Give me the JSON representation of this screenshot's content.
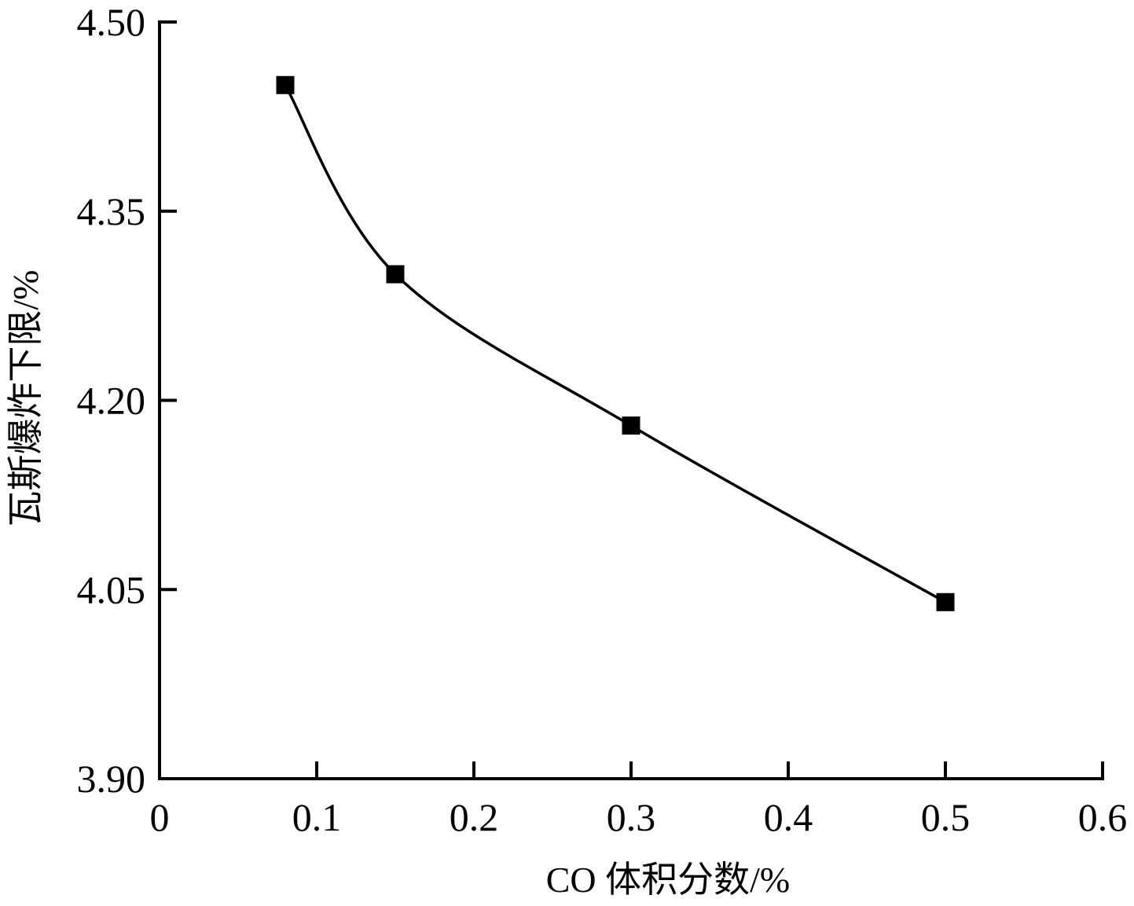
{
  "chart_data": {
    "type": "line",
    "title": "",
    "xlabel": "CO 体积分数/%",
    "ylabel": "瓦斯爆炸下限/%",
    "xlim": [
      0,
      0.6
    ],
    "ylim": [
      3.9,
      4.5
    ],
    "x_ticks": [
      "0",
      "0.1",
      "0.2",
      "0.3",
      "0.4",
      "0.5",
      "0.6"
    ],
    "x_tick_values": [
      0,
      0.1,
      0.2,
      0.3,
      0.4,
      0.5,
      0.6
    ],
    "y_ticks": [
      "3.90",
      "4.05",
      "4.20",
      "4.35",
      "4.50"
    ],
    "y_tick_values": [
      3.9,
      4.05,
      4.2,
      4.35,
      4.5
    ],
    "grid": false,
    "legend": null,
    "series": [
      {
        "name": "瓦斯爆炸下限",
        "marker": "square",
        "line": "smooth",
        "color": "#000000",
        "x": [
          0.08,
          0.15,
          0.3,
          0.5
        ],
        "values": [
          4.45,
          4.3,
          4.18,
          4.04
        ]
      }
    ]
  }
}
